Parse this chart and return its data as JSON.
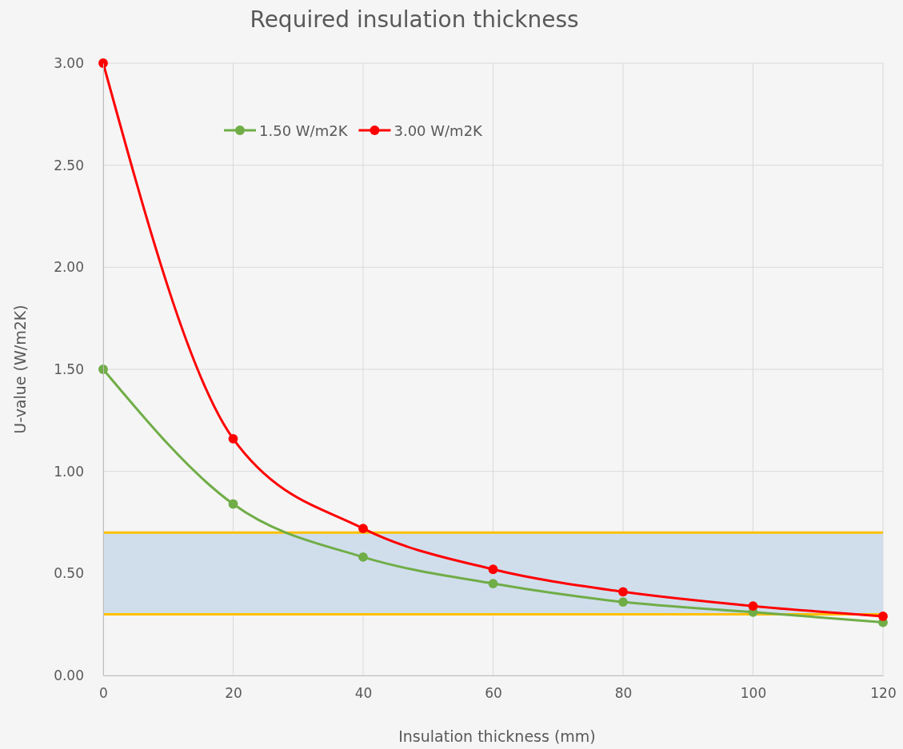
{
  "chart_data": {
    "type": "line",
    "title": "Required insulation thickness",
    "xlabel": "Insulation thickness (mm)",
    "ylabel": "U-value (W/m2K)",
    "x": [
      0,
      20,
      40,
      60,
      80,
      100,
      120
    ],
    "series": [
      {
        "name": "1.50 W/m2K",
        "color": "#70ad47",
        "values": [
          1.5,
          0.84,
          0.58,
          0.45,
          0.36,
          0.31,
          0.26
        ]
      },
      {
        "name": "3.00 W/m2K",
        "color": "#ff0000",
        "values": [
          3.0,
          1.16,
          0.72,
          0.52,
          0.41,
          0.34,
          0.29
        ]
      }
    ],
    "xlim": [
      0,
      120
    ],
    "xticks": [
      0,
      20,
      40,
      60,
      80,
      100,
      120
    ],
    "ylim": [
      0,
      3
    ],
    "yticks": [
      {
        "value": 0,
        "label": "0.00"
      },
      {
        "value": 0.5,
        "label": "0.50"
      },
      {
        "value": 1,
        "label": "1.00"
      },
      {
        "value": 1.5,
        "label": "1.50"
      },
      {
        "value": 2,
        "label": "2.00"
      },
      {
        "value": 2.5,
        "label": "2.50"
      },
      {
        "value": 3,
        "label": "3.00"
      }
    ],
    "bands": [
      {
        "axis": "y",
        "from": 0.3,
        "to": 0.7,
        "color": "#d0deec"
      }
    ],
    "ref_lines": [
      {
        "axis": "y",
        "value": 0.7,
        "color": "#ffc000"
      },
      {
        "axis": "y",
        "value": 0.3,
        "color": "#ffc000"
      }
    ],
    "grid": true,
    "legend": "top",
    "marker": "circle",
    "line_style": "solid"
  }
}
